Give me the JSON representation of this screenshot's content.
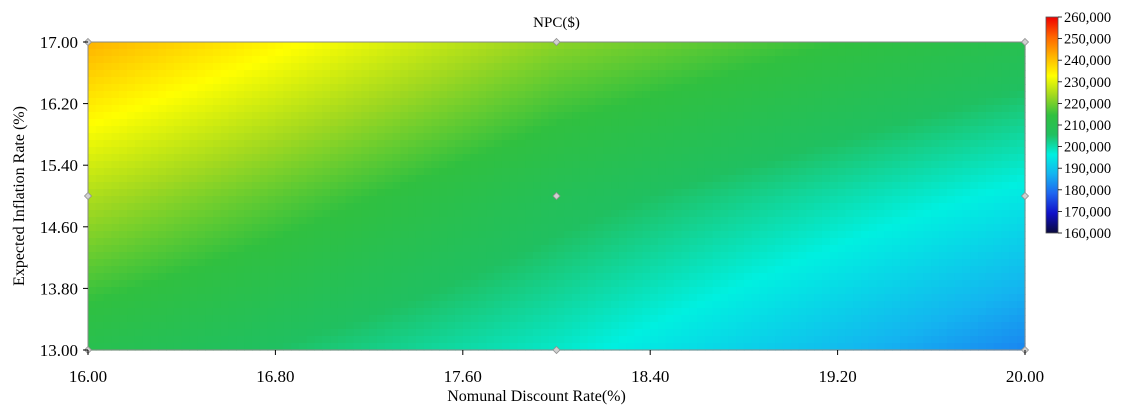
{
  "chart_data": {
    "type": "heatmap",
    "title": "NPC($)",
    "xlabel": "Nomunal Discount Rate(%)",
    "ylabel": "Expected Inflation Rate (%)",
    "xlim": [
      16.0,
      20.0
    ],
    "ylim": [
      13.0,
      17.0
    ],
    "x_ticks": [
      "16.00",
      "16.80",
      "17.60",
      "18.40",
      "19.20",
      "20.00"
    ],
    "y_ticks": [
      "13.00",
      "13.80",
      "14.60",
      "15.40",
      "16.20",
      "17.00"
    ],
    "surface": {
      "x": [
        16.0,
        18.0,
        20.0
      ],
      "y": [
        13.0,
        15.0,
        17.0
      ],
      "z": [
        [
          210000,
          198000,
          182000
        ],
        [
          225000,
          208000,
          195000
        ],
        [
          242000,
          222000,
          210000
        ]
      ]
    },
    "design_points": [
      {
        "x": 16.0,
        "y": 13.0
      },
      {
        "x": 18.0,
        "y": 13.0
      },
      {
        "x": 20.0,
        "y": 13.0
      },
      {
        "x": 16.0,
        "y": 15.0
      },
      {
        "x": 18.0,
        "y": 15.0
      },
      {
        "x": 20.0,
        "y": 15.0
      },
      {
        "x": 16.0,
        "y": 17.0
      },
      {
        "x": 18.0,
        "y": 17.0
      },
      {
        "x": 20.0,
        "y": 17.0
      }
    ],
    "colorbar": {
      "min": 160000,
      "max": 260000,
      "labels": [
        "260,000",
        "250,000",
        "240,000",
        "230,000",
        "220,000",
        "210,000",
        "200,000",
        "190,000",
        "180,000",
        "170,000",
        "160,000"
      ],
      "colors": [
        "#0a0a3c",
        "#1010c8",
        "#1e64f0",
        "#14b4f0",
        "#00f0e0",
        "#20c060",
        "#30c040",
        "#a0d820",
        "#ffff00",
        "#ffb400",
        "#ff6400",
        "#f00000"
      ]
    },
    "grid": false,
    "legend": "right"
  }
}
